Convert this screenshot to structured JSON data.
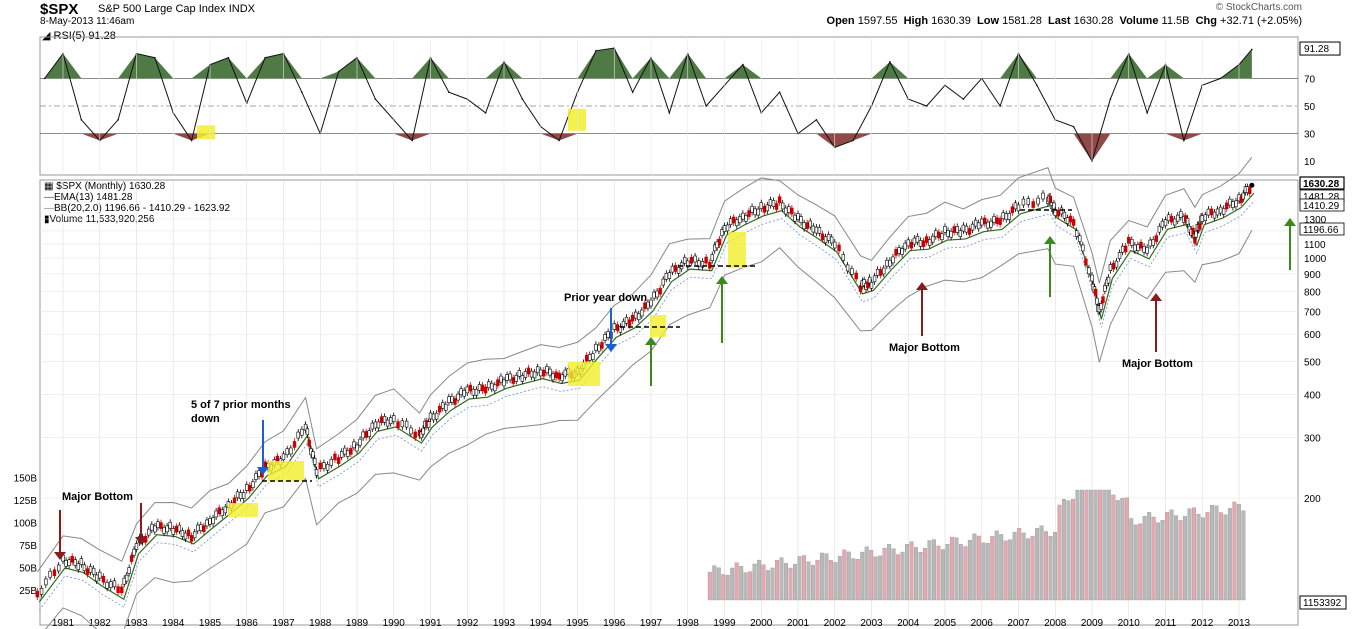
{
  "header": {
    "ticker": "$SPX",
    "index_name": "S&P 500 Large Cap Index",
    "exchange": "INDX",
    "date": "8-May-2013 11:46am",
    "brand": "© StockCharts.com",
    "open_label": "Open",
    "open": "1597.55",
    "high_label": "High",
    "high": "1630.39",
    "low_label": "Low",
    "low": "1581.28",
    "last_label": "Last",
    "last": "1630.28",
    "volume_label": "Volume",
    "volume": "11.5B",
    "chg_label": "Chg",
    "chg": "+32.71 (+2.05%)"
  },
  "rsi_panel": {
    "label": "RSI(5) 91.28",
    "value_badge": "91.28",
    "ticks": [
      "70",
      "50",
      "30",
      "10"
    ]
  },
  "legend": {
    "price": "$SPX (Monthly) 1630.28",
    "ema": "EMA(13) 1481.28",
    "bb": "BB(20,2.0) 1196.66 - 1410.29 - 1623.92",
    "volume": "Volume 11,533,920,256"
  },
  "price_badges": [
    "1630.28",
    "1481.28",
    "1410.29",
    "1196.66"
  ],
  "volume_badge": "1153392",
  "colors": {
    "up": "#000000",
    "down": "#cc0000",
    "ema": "#2e6b1f",
    "bb": "#888888",
    "highlight": "#f2ef2a",
    "green_arrow": "#3a8a1a",
    "red_arrow": "#8b1a1a",
    "blue_arrow": "#1a5fd6",
    "rsi_fill_up": "#4f7a45",
    "rsi_fill_down": "#8f4a47"
  },
  "annotations": [
    {
      "text": "Major Bottom"
    },
    {
      "text": "5 of 7 prior months"
    },
    {
      "text": "down"
    },
    {
      "text": "Prior year down"
    },
    {
      "text": "Major Bottom"
    },
    {
      "text": "Major Bottom"
    }
  ],
  "chart_data": [
    {
      "type": "line",
      "title": "RSI(5)",
      "y_ticks": [
        70,
        50,
        30,
        10
      ],
      "ylim": [
        0,
        100
      ],
      "x": [
        1980.5,
        1981,
        1981.5,
        1982,
        1982.5,
        1983,
        1983.5,
        1984,
        1984.5,
        1985,
        1985.5,
        1986,
        1986.5,
        1987,
        1987.5,
        1988,
        1988.5,
        1989,
        1989.5,
        1990,
        1990.5,
        1991,
        1991.5,
        1992,
        1992.5,
        1993,
        1993.5,
        1994,
        1994.5,
        1995,
        1995.5,
        1996,
        1996.5,
        1997,
        1997.5,
        1998,
        1998.5,
        1999,
        1999.5,
        2000,
        2000.5,
        2001,
        2001.5,
        2002,
        2002.5,
        2003,
        2003.5,
        2004,
        2004.5,
        2005,
        2005.5,
        2006,
        2006.5,
        2007,
        2007.5,
        2008,
        2008.5,
        2009,
        2009.5,
        2010,
        2010.5,
        2011,
        2011.5,
        2012,
        2012.5,
        2013,
        2013.35
      ],
      "values": [
        70,
        88,
        40,
        25,
        40,
        88,
        85,
        45,
        25,
        80,
        85,
        52,
        85,
        88,
        60,
        30,
        75,
        85,
        55,
        40,
        25,
        85,
        60,
        55,
        45,
        82,
        55,
        35,
        25,
        60,
        90,
        92,
        60,
        85,
        45,
        88,
        50,
        65,
        80,
        45,
        60,
        30,
        40,
        20,
        25,
        50,
        82,
        55,
        50,
        65,
        55,
        70,
        50,
        88,
        65,
        40,
        35,
        10,
        55,
        88,
        45,
        80,
        25,
        65,
        70,
        80,
        91
      ]
    },
    {
      "type": "line",
      "title": "$SPX (Monthly)",
      "log_scale": true,
      "x_ticks": [
        "1981",
        "1982",
        "1983",
        "1984",
        "1985",
        "1986",
        "1987",
        "1988",
        "1989",
        "1990",
        "1991",
        "1992",
        "1993",
        "1994",
        "1995",
        "1996",
        "1997",
        "1998",
        "1999",
        "2000",
        "2001",
        "2002",
        "2003",
        "2004",
        "2005",
        "2006",
        "2007",
        "2008",
        "2009",
        "2010",
        "2011",
        "2012",
        "2013"
      ],
      "y_ticks": [
        1300,
        1200,
        1100,
        1000,
        900,
        800,
        700,
        600,
        500,
        400,
        300,
        200
      ],
      "series": [
        {
          "name": "$SPX (Monthly)",
          "x": [
            1980.3,
            1981,
            1981.5,
            1982,
            1982.6,
            1983,
            1983.5,
            1984,
            1984.5,
            1985,
            1985.5,
            1986,
            1986.5,
            1987,
            1987.6,
            1987.9,
            1988.5,
            1989,
            1989.5,
            1990,
            1990.7,
            1991,
            1991.5,
            1992,
            1992.5,
            1993,
            1993.5,
            1994,
            1994.5,
            1995,
            1995.5,
            1996,
            1996.5,
            1997,
            1997.5,
            1998,
            1998.6,
            1999,
            1999.5,
            2000,
            2000.5,
            2001,
            2001.5,
            2002,
            2002.7,
            2003,
            2003.5,
            2004,
            2004.5,
            2005,
            2005.5,
            2006,
            2006.5,
            2007,
            2007.8,
            2008,
            2008.5,
            2009,
            2009.2,
            2009.5,
            2010,
            2010.5,
            2011,
            2011.5,
            2011.8,
            2012,
            2012.5,
            2013,
            2013.35
          ],
          "values": [
            105,
            132,
            128,
            117,
            107,
            145,
            165,
            163,
            155,
            172,
            190,
            211,
            245,
            260,
            321,
            240,
            262,
            285,
            330,
            340,
            305,
            340,
            380,
            410,
            415,
            440,
            455,
            470,
            455,
            465,
            540,
            620,
            660,
            740,
            900,
            980,
            970,
            1230,
            1320,
            1400,
            1450,
            1300,
            1200,
            1100,
            830,
            850,
            980,
            1110,
            1120,
            1190,
            1200,
            1260,
            1280,
            1420,
            1500,
            1380,
            1280,
            870,
            700,
            920,
            1110,
            1050,
            1280,
            1320,
            1150,
            1320,
            1380,
            1480,
            1630
          ]
        },
        {
          "name": "EMA(13)",
          "last": 1481.28
        },
        {
          "name": "BB(20,2.0)",
          "lower": 1196.66,
          "middle": 1410.29,
          "upper": 1623.92
        }
      ]
    },
    {
      "type": "bar",
      "title": "Volume",
      "y_ticks": [
        "150B",
        "125B",
        "100B",
        "75B",
        "50B",
        "25B"
      ],
      "last": 11533920256
    }
  ]
}
